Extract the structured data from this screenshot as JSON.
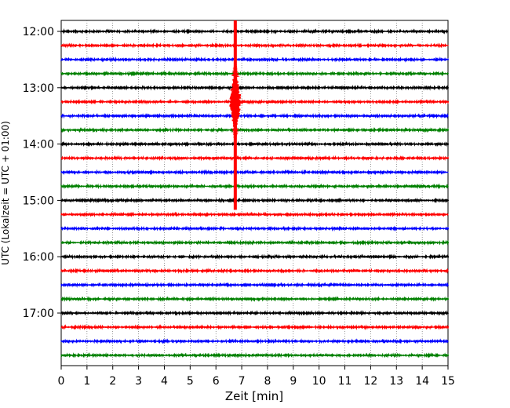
{
  "chart_data": {
    "type": "line",
    "description_kind": "helicorder",
    "xlabel": "Zeit  [min]",
    "ylabel": "UTC (Lokalzeit = UTC + 01:00)",
    "xlim": [
      0,
      15
    ],
    "x_ticks": [
      "0",
      "1",
      "2",
      "3",
      "4",
      "5",
      "6",
      "7",
      "8",
      "9",
      "10",
      "11",
      "12",
      "13",
      "14",
      "15"
    ],
    "y_ticks": [
      "12:00",
      "13:00",
      "14:00",
      "15:00",
      "16:00",
      "17:00"
    ],
    "grid_x": "dotted",
    "trace_interval_min": 15,
    "trace_colors": [
      "#000000",
      "#ff0000",
      "#0000ff",
      "#008000"
    ],
    "traces_start": [
      "12:00",
      "12:15",
      "12:30",
      "12:45",
      "13:00",
      "13:15",
      "13:30",
      "13:45",
      "14:00",
      "14:15",
      "14:30",
      "14:45",
      "15:00",
      "15:15",
      "15:30",
      "15:45",
      "16:00",
      "16:15",
      "16:30",
      "16:45",
      "17:00",
      "17:15",
      "17:30",
      "17:45"
    ],
    "event": {
      "x_min": 6.75,
      "first_trace": "12:00",
      "last_trace": "15:00",
      "peak_trace": "13:15",
      "color": "#ff0000"
    }
  }
}
